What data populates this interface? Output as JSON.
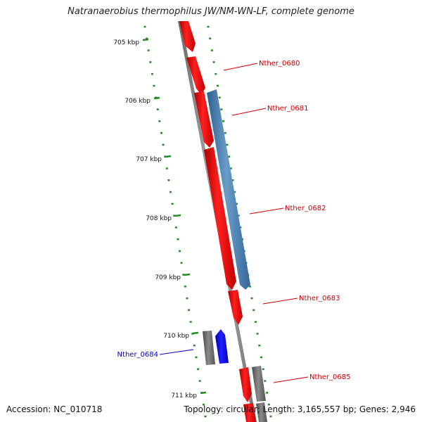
{
  "title": "Natranaerobius thermophilus JW/NM-WN-LF, complete genome",
  "accession": "Accession: NC_010718",
  "summary": "Topology: circular; Length: 3,165,557 bp; Genes: 2,946",
  "kbp_labels": [
    "705 kbp",
    "706 kbp",
    "707 kbp",
    "708 kbp",
    "709 kbp",
    "710 kbp",
    "711 kbp"
  ],
  "genes": [
    {
      "name": "Nther_0680",
      "color": "#cc0000"
    },
    {
      "name": "Nther_0681",
      "color": "#cc0000"
    },
    {
      "name": "Nther_0682",
      "color": "#cc0000"
    },
    {
      "name": "Nther_0683",
      "color": "#cc0000"
    },
    {
      "name": "Nther_0684",
      "color": "#0000cc"
    },
    {
      "name": "Nther_0685",
      "color": "#cc0000"
    }
  ],
  "colors": {
    "cds_red": "#ff0000",
    "cds_blue": "#0000ff",
    "gene_steel": "#4682b4",
    "gene_gray": "#696969",
    "backbone": "#808080",
    "tick_green": "#228b22",
    "label_red": "#cc0000",
    "label_blue": "#0000cc",
    "cyan": "#00bfff"
  }
}
